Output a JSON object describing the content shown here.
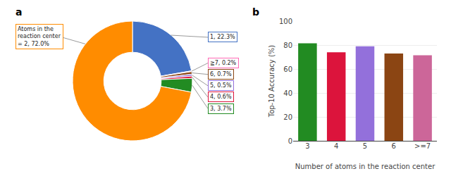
{
  "chart_data": [
    {
      "type": "pie",
      "title": "a",
      "values": [
        22.3,
        0.2,
        0.7,
        0.5,
        0.6,
        3.7,
        72.0
      ],
      "colors": [
        "#4472C4",
        "#FF69B4",
        "#8B4513",
        "#9370DB",
        "#DC143C",
        "#228B22",
        "#FF8C00"
      ],
      "value_labels": [
        "1, 22.3%",
        "≧7, 0.2%",
        "6, 0.7%",
        "5, 0.5%",
        "4, 0.6%",
        "3, 3.7%",
        "Atoms in the\nreaction center\n= 2, 72.0%"
      ]
    },
    {
      "type": "bar",
      "title": "b",
      "categories": [
        "3",
        "4",
        "5",
        "6",
        ">=7"
      ],
      "values": [
        81.5,
        74.0,
        79.0,
        73.0,
        71.5
      ],
      "colors": [
        "#228B22",
        "#DC143C",
        "#9370DB",
        "#8B4513",
        "#CC6699"
      ],
      "xlabel": "Number of atoms in the reaction center",
      "ylabel": "Top-10 Accuracy (%)",
      "ylim": [
        0,
        100
      ],
      "yticks": [
        0,
        20,
        40,
        60,
        80,
        100
      ],
      "grid": true
    }
  ]
}
